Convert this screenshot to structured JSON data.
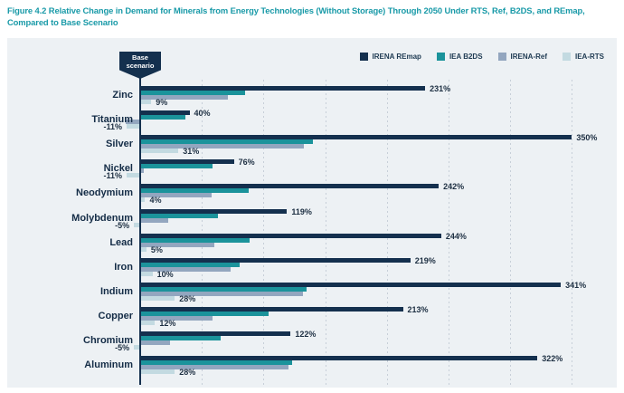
{
  "header": {
    "line1": "Figure 4.2 Relative Change in Demand for Minerals from Energy Technologies (Without Storage) Through 2050 Under RTS, Ref, B2DS, and REmap,",
    "line2": "Compared to Base Scenario"
  },
  "colors": {
    "title": "#199AA8",
    "panel_background": "#EDF1F4",
    "axis": "#14304E",
    "category_text": "#142C46",
    "value_text": "#1D2F42",
    "gridline": "#C7CFD8"
  },
  "chart_data": {
    "type": "bar",
    "orientation": "horizontal",
    "title": "Figure 4.2 Relative Change in Demand for Minerals from Energy Technologies (Without Storage) Through 2050 Under RTS, Ref, B2DS, and REmap, Compared to Base Scenario",
    "base_marker": "Base scenario",
    "value_suffix": "%",
    "xlim": [
      -25,
      360
    ],
    "grid_step": 50,
    "grid_style": "dashed-vertical",
    "legend_position": "top-right",
    "categories": [
      "Zinc",
      "Titanium",
      "Silver",
      "Nickel",
      "Neodymium",
      "Molybdenum",
      "Lead",
      "Iron",
      "Indium",
      "Copper",
      "Chromium",
      "Aluminum"
    ],
    "series": [
      {
        "name": "IRENA REmap",
        "color": "#14304E",
        "labeled": true,
        "values": [
          231,
          40,
          350,
          76,
          242,
          119,
          244,
          219,
          341,
          213,
          122,
          322
        ]
      },
      {
        "name": "IEA B2DS",
        "color": "#1B939B",
        "labeled": false,
        "values": [
          85,
          37,
          140,
          59,
          88,
          63,
          89,
          81,
          135,
          104,
          65,
          123
        ]
      },
      {
        "name": "IRENA-Ref",
        "color": "#93A6BF",
        "labeled": false,
        "values": [
          71,
          -12,
          133,
          3,
          58,
          23,
          60,
          73,
          132,
          59,
          24,
          120
        ]
      },
      {
        "name": "IEA-RTS",
        "color": "#C3DAE1",
        "labeled": true,
        "values": [
          9,
          -11,
          31,
          -11,
          4,
          -5,
          5,
          10,
          28,
          12,
          -5,
          28
        ]
      }
    ]
  }
}
